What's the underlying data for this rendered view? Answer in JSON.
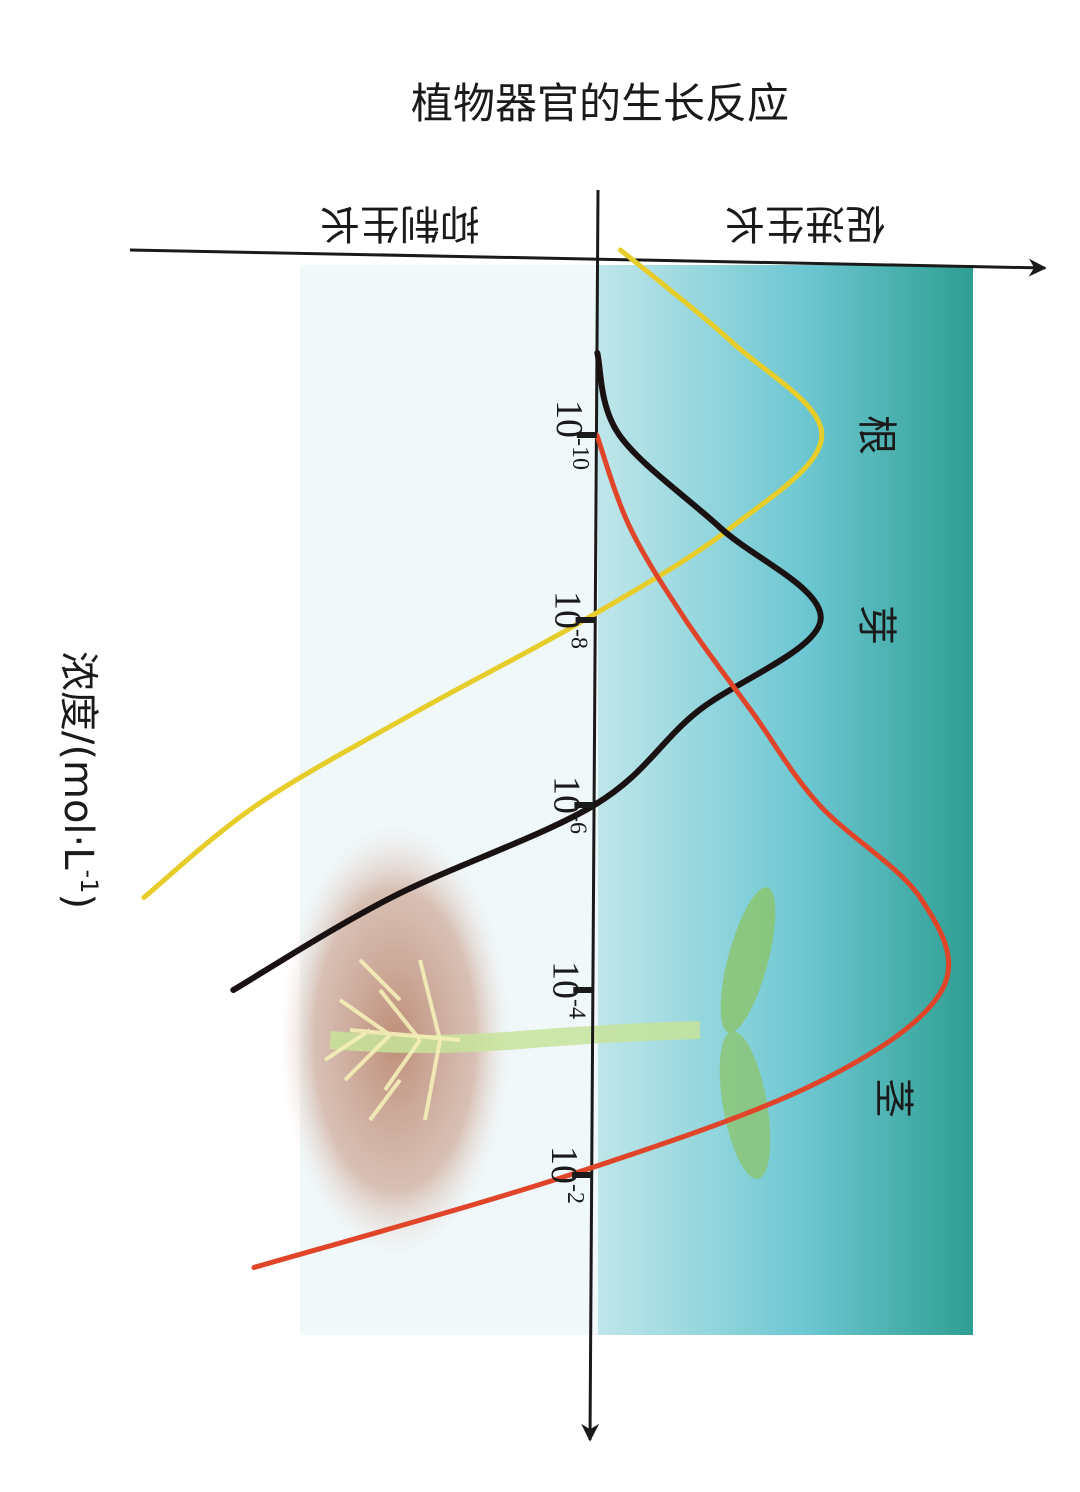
{
  "chart_data": {
    "type": "line",
    "title": "植物器官的生长反应",
    "promote_label": "促进生长",
    "inhibit_label": "抑制生长",
    "xlabel": "浓度/(mol·L",
    "xlabel_sup": "-1",
    "xlabel_close": ")",
    "x_scale": "log",
    "x_ticks": [
      {
        "base": "10",
        "exp": "-10",
        "value": 1e-10
      },
      {
        "base": "10",
        "exp": "-8",
        "value": 1e-08
      },
      {
        "base": "10",
        "exp": "-6",
        "value": 1e-06
      },
      {
        "base": "10",
        "exp": "-4",
        "value": 0.0001
      },
      {
        "base": "10",
        "exp": "-2",
        "value": 0.01
      }
    ],
    "series": [
      {
        "name": "根",
        "color": "#e7cd2a",
        "x": [
          1e-12,
          1e-11,
          1e-10,
          1e-09,
          1e-08,
          1e-07,
          1e-06,
          1e-05
        ],
        "y": [
          0.1,
          0.6,
          1.0,
          0.6,
          -0.05,
          -0.8,
          -1.5,
          -2.0
        ]
      },
      {
        "name": "芽",
        "color": "#1a1212",
        "x": [
          1.3e-11,
          1e-10,
          1e-09,
          1e-08,
          1e-07,
          1e-06,
          1e-05,
          0.0001
        ],
        "y": [
          0.0,
          0.1,
          0.55,
          1.0,
          0.45,
          0.0,
          -0.9,
          -1.6
        ]
      },
      {
        "name": "茎",
        "color": "#e0452a",
        "x": [
          1e-10,
          1e-09,
          1e-08,
          1e-07,
          1e-06,
          1e-05,
          0.0001,
          0.001,
          0.01,
          0.1
        ],
        "y": [
          0.0,
          0.15,
          0.4,
          0.7,
          1.0,
          1.45,
          1.55,
          1.0,
          -0.1,
          -1.5
        ]
      }
    ]
  }
}
